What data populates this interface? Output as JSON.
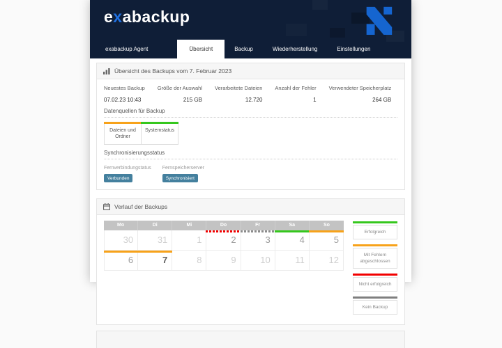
{
  "header": {
    "logo": {
      "prefix": "e",
      "x": "x",
      "suffix": "abackup"
    },
    "nav": {
      "agent_label": "exabackup Agent",
      "tabs": [
        {
          "label": "Übersicht",
          "active": true
        },
        {
          "label": "Backup",
          "active": false
        },
        {
          "label": "Wiederherstellung",
          "active": false
        },
        {
          "label": "Einstellungen",
          "active": false
        }
      ]
    },
    "colors": {
      "background": "#0f1e37",
      "logo_x": "#2070e0",
      "brand_mark": "#1565d0"
    }
  },
  "overview_panel": {
    "title": "Übersicht des Backups vom 7. Februar 2023",
    "stats": [
      {
        "label": "Neuestes Backup",
        "value": "07.02.23 10:43",
        "numeric": false
      },
      {
        "label": "Größe der Auswahl",
        "value": "215 GB",
        "numeric": true
      },
      {
        "label": "Verarbeitete Dateien",
        "value": "12.720",
        "numeric": true
      },
      {
        "label": "Anzahl der Fehler",
        "value": "1",
        "numeric": true
      },
      {
        "label": "Verwendeter Speicherplatz",
        "value": "264 GB",
        "numeric": true
      }
    ],
    "datasources": {
      "title": "Datenquellen für Backup",
      "items": [
        {
          "label": "Dateien und Ordner",
          "color": "#f7a21a"
        },
        {
          "label": "Systemstatus",
          "color": "#35c71d"
        }
      ]
    },
    "sync": {
      "title": "Synchronisierungsstatus",
      "badge_color": "#44809e",
      "items": [
        {
          "label": "Fernverbindungstatus",
          "badge": "Verbunden"
        },
        {
          "label": "Fernspeicherserver",
          "badge": "Synchronisiert"
        }
      ]
    }
  },
  "history_panel": {
    "title": "Verlauf der Backups",
    "weekdays": [
      "Mo",
      "Di",
      "Mi",
      "Do",
      "Fr",
      "Sa",
      "So"
    ],
    "statuses": {
      "success": {
        "color": "#35c71d",
        "dashed": false
      },
      "warning": {
        "color": "#f7a21a",
        "dashed": false
      },
      "failed": {
        "color": "#f20000",
        "dashed": true
      },
      "none": {
        "color": "#8c8c8c",
        "dashed": true
      }
    },
    "weeks": [
      [
        {
          "day": "30",
          "muted": true
        },
        {
          "day": "31",
          "muted": true
        },
        {
          "day": "1",
          "muted": true
        },
        {
          "day": "2",
          "status": "failed"
        },
        {
          "day": "3",
          "status": "none"
        },
        {
          "day": "4",
          "status": "success"
        },
        {
          "day": "5",
          "status": "warning"
        }
      ],
      [
        {
          "day": "6",
          "status": "warning"
        },
        {
          "day": "7",
          "status": "warning",
          "today": true
        },
        {
          "day": "8",
          "muted": true
        },
        {
          "day": "9",
          "muted": true
        },
        {
          "day": "10",
          "muted": true
        },
        {
          "day": "11",
          "muted": true
        },
        {
          "day": "12",
          "muted": true
        }
      ]
    ],
    "legend": [
      {
        "label": "Erfolgreich",
        "color": "#35c71d"
      },
      {
        "label": "Mit Fehlern abgeschlossen",
        "color": "#f7a21a"
      },
      {
        "label": "Nicht erfolgreich",
        "color": "#f20000"
      },
      {
        "label": "Kein Backup",
        "color": "#7f7f7f"
      }
    ]
  }
}
